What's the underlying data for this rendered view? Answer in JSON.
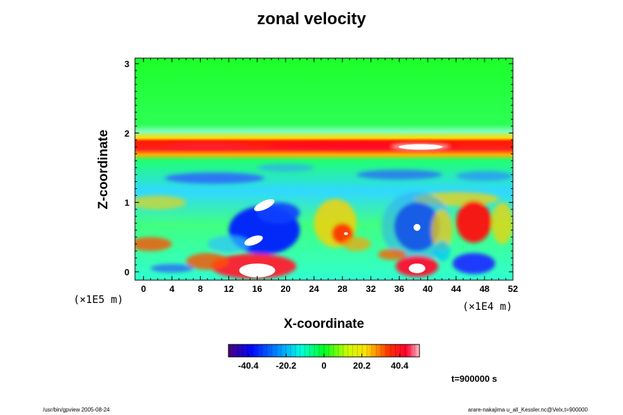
{
  "chart_data": {
    "type": "heatmap",
    "title": "zonal velocity",
    "xlabel": "X-coordinate",
    "ylabel": "Z-coordinate",
    "x_ticks": [
      0,
      4,
      8,
      12,
      16,
      20,
      24,
      28,
      32,
      36,
      40,
      44,
      48,
      52
    ],
    "y_ticks": [
      0,
      1,
      2,
      3
    ],
    "xlim": [
      -1.2,
      52
    ],
    "ylim": [
      -0.12,
      3.08
    ],
    "x_unit": "(×1E4 m)",
    "y_unit": "(×1E5 m)",
    "colorbar": {
      "ticks": [
        -40.4,
        -20.2,
        0,
        20.2,
        40.4
      ],
      "tick_labels": [
        "-40.4",
        "-20.2",
        "0",
        "20.2",
        "40.4"
      ],
      "range": [
        -51,
        51
      ],
      "colormap": "rainbow"
    },
    "features": [
      {
        "x": 31,
        "z": 1.82,
        "value": 42
      },
      {
        "x": 39,
        "z": 1.8,
        "value": 52
      },
      {
        "x": 15.5,
        "z": 0.02,
        "value": 50
      },
      {
        "x": 38.5,
        "z": 0.65,
        "value": -45
      },
      {
        "x": 17,
        "z": 0.6,
        "value": -42
      },
      {
        "x": 46.5,
        "z": 0.72,
        "value": 40
      },
      {
        "x": 46.5,
        "z": 0.12,
        "value": -38
      },
      {
        "x": 38.5,
        "z": 0.05,
        "value": 44
      }
    ]
  },
  "time_label": "t=900000 s",
  "footer_left": "/usr/bin/gpview 2005-08-24",
  "footer_right": "arare-nakajima u_all_Kessler.nc@Velx,t=900000"
}
